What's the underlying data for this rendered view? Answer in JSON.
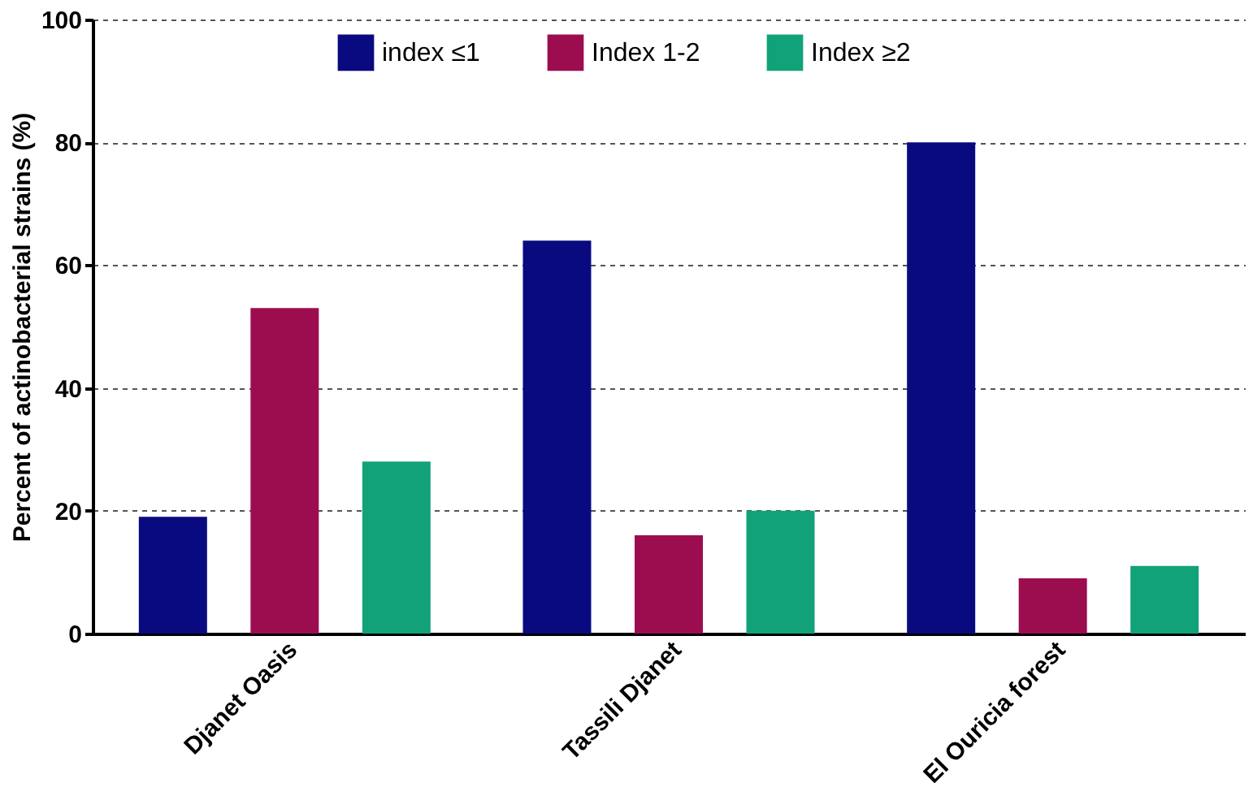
{
  "chart_data": {
    "type": "bar",
    "ylabel": "Percent of actinobacterial strains (%)",
    "categories": [
      "Djanet Oasis",
      "Tassili Djanet",
      "El Ouricia forest"
    ],
    "series": [
      {
        "name": "index ≤1",
        "color": "#0a0a80",
        "values": [
          19,
          64,
          80
        ]
      },
      {
        "name": "Index 1-2",
        "color": "#9c0d50",
        "values": [
          53,
          16,
          9
        ]
      },
      {
        "name": "Index ≥2",
        "color": "#12a27a",
        "values": [
          28,
          20,
          11
        ]
      }
    ],
    "ylim": [
      0,
      100
    ],
    "yticks": [
      0,
      20,
      40,
      60,
      80,
      100
    ],
    "grid": "y",
    "legend": "top"
  }
}
